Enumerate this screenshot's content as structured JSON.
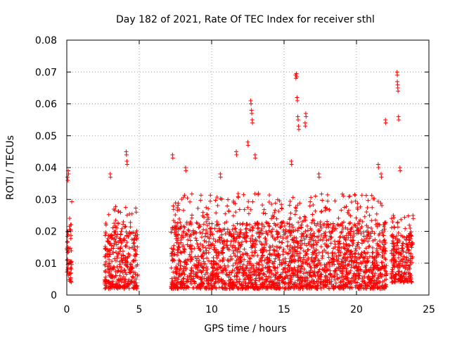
{
  "chart_data": {
    "type": "scatter",
    "title": "Day 182 of 2021, Rate Of TEC Index for receiver sthl",
    "xlabel": "GPS time / hours",
    "ylabel": "ROTI / TECUs",
    "xlim": [
      0,
      25
    ],
    "ylim": [
      0,
      0.08
    ],
    "x_ticks": [
      "0",
      "5",
      "10",
      "15",
      "20",
      "25"
    ],
    "y_ticks": [
      "0",
      "0.01",
      "0.02",
      "0.03",
      "0.04",
      "0.05",
      "0.06",
      "0.07",
      "0.08"
    ],
    "grid": true,
    "marker": "plus",
    "color": "#ff0000",
    "series": [
      {
        "name": "ROTI",
        "density_profile": [
          {
            "x_start": 0.0,
            "x_end": 0.35,
            "y_low": 0.004,
            "y_high": 0.03
          },
          {
            "x_start": 2.6,
            "x_end": 4.9,
            "y_low": 0.002,
            "y_high": 0.028
          },
          {
            "x_start": 7.2,
            "x_end": 22.1,
            "y_low": 0.002,
            "y_high": 0.032
          },
          {
            "x_start": 22.4,
            "x_end": 23.9,
            "y_low": 0.004,
            "y_high": 0.025
          }
        ],
        "peaks": [
          {
            "x": 0.1,
            "y": 0.039
          },
          {
            "x": 0.05,
            "y": 0.037
          },
          {
            "x": 3.0,
            "y": 0.038
          },
          {
            "x": 4.1,
            "y": 0.045
          },
          {
            "x": 4.15,
            "y": 0.042
          },
          {
            "x": 7.3,
            "y": 0.044
          },
          {
            "x": 8.2,
            "y": 0.04
          },
          {
            "x": 10.6,
            "y": 0.038
          },
          {
            "x": 11.7,
            "y": 0.045
          },
          {
            "x": 12.5,
            "y": 0.048
          },
          {
            "x": 12.7,
            "y": 0.061
          },
          {
            "x": 12.75,
            "y": 0.058
          },
          {
            "x": 12.8,
            "y": 0.055
          },
          {
            "x": 13.0,
            "y": 0.044
          },
          {
            "x": 15.5,
            "y": 0.042
          },
          {
            "x": 15.8,
            "y": 0.069
          },
          {
            "x": 15.85,
            "y": 0.0695
          },
          {
            "x": 15.9,
            "y": 0.062
          },
          {
            "x": 15.95,
            "y": 0.056
          },
          {
            "x": 16.0,
            "y": 0.053
          },
          {
            "x": 16.5,
            "y": 0.057
          },
          {
            "x": 16.45,
            "y": 0.054
          },
          {
            "x": 17.4,
            "y": 0.038
          },
          {
            "x": 21.5,
            "y": 0.041
          },
          {
            "x": 21.7,
            "y": 0.038
          },
          {
            "x": 22.0,
            "y": 0.055
          },
          {
            "x": 22.8,
            "y": 0.07
          },
          {
            "x": 22.82,
            "y": 0.067
          },
          {
            "x": 22.85,
            "y": 0.065
          },
          {
            "x": 22.9,
            "y": 0.056
          },
          {
            "x": 23.0,
            "y": 0.04
          },
          {
            "x": 23.9,
            "y": 0.025
          }
        ]
      }
    ]
  }
}
